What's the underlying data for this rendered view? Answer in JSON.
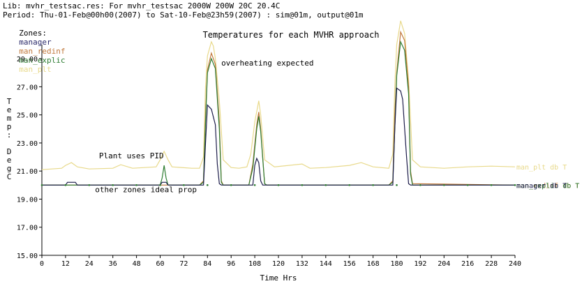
{
  "header": {
    "lib_line": "Lib: mvhr_testsac.res: For mvhr_testsac 2000W 200W 20C 20.4C",
    "period_line": "Period: Thu-01-Feb@00h00(2007) to Sat-10-Feb@23h59(2007) : sim@01m, output@01m",
    "zones_label": "Zones:",
    "zones": [
      {
        "name": "manager",
        "color": "#2a2a6a"
      },
      {
        "name": "man_redinf",
        "color": "#c0783c"
      },
      {
        "name": "man_explic",
        "color": "#2e7d32"
      },
      {
        "name": "man_plt",
        "color": "#e8d98a"
      }
    ]
  },
  "chart_data": {
    "type": "line",
    "title": "Temperatures for each MVHR approach",
    "xlabel": "Time Hrs",
    "ylabel": "Temp: DegC",
    "xlim": [
      0,
      240
    ],
    "ylim": [
      15,
      30
    ],
    "xticks": [
      0,
      12,
      24,
      36,
      48,
      60,
      72,
      84,
      96,
      108,
      120,
      132,
      144,
      156,
      168,
      180,
      192,
      204,
      216,
      228,
      240
    ],
    "yticks": [
      "15.00",
      "17.00",
      "19.00",
      "21.00",
      "23.00",
      "25.00",
      "27.00",
      "29.00"
    ],
    "ytick_values": [
      15,
      17,
      19,
      21,
      23,
      25,
      27,
      29
    ],
    "annotations": [
      {
        "text": "overheating expected",
        "x": 91,
        "y": 28.5
      },
      {
        "text": "Plant uses PID",
        "x": 29,
        "y": 21.9
      },
      {
        "text": "other zones ideal prop",
        "x": 27,
        "y": 19.5
      }
    ],
    "series": [
      {
        "name": "man_plt db T",
        "color": "#e8d98a",
        "points": [
          [
            0,
            21.1
          ],
          [
            10,
            21.2
          ],
          [
            12,
            21.4
          ],
          [
            15,
            21.6
          ],
          [
            18,
            21.3
          ],
          [
            24,
            21.15
          ],
          [
            36,
            21.2
          ],
          [
            40,
            21.45
          ],
          [
            46,
            21.2
          ],
          [
            58,
            21.3
          ],
          [
            60,
            21.8
          ],
          [
            62,
            22.4
          ],
          [
            64,
            21.8
          ],
          [
            66,
            21.3
          ],
          [
            76,
            21.2
          ],
          [
            80,
            21.2
          ],
          [
            82,
            22.0
          ],
          [
            83,
            27.0
          ],
          [
            84,
            29.2
          ],
          [
            86,
            30.2
          ],
          [
            87,
            29.9
          ],
          [
            88,
            29.0
          ],
          [
            90,
            26.0
          ],
          [
            92,
            21.8
          ],
          [
            96,
            21.25
          ],
          [
            100,
            21.2
          ],
          [
            104,
            21.3
          ],
          [
            106,
            22.2
          ],
          [
            108,
            24.5
          ],
          [
            110,
            26.0
          ],
          [
            111,
            25.0
          ],
          [
            113,
            21.8
          ],
          [
            118,
            21.3
          ],
          [
            132,
            21.5
          ],
          [
            136,
            21.2
          ],
          [
            144,
            21.25
          ],
          [
            156,
            21.4
          ],
          [
            162,
            21.6
          ],
          [
            168,
            21.3
          ],
          [
            176,
            21.2
          ],
          [
            178,
            22.2
          ],
          [
            179,
            27.0
          ],
          [
            180,
            30.0
          ],
          [
            182,
            31.7
          ],
          [
            184,
            30.8
          ],
          [
            186,
            27.5
          ],
          [
            188,
            21.8
          ],
          [
            192,
            21.3
          ],
          [
            204,
            21.2
          ],
          [
            216,
            21.3
          ],
          [
            228,
            21.35
          ],
          [
            240,
            21.3
          ]
        ]
      },
      {
        "name": "man_redinf db T",
        "color": "#c0783c",
        "points": [
          [
            0,
            20.0
          ],
          [
            80,
            20.0
          ],
          [
            82,
            20.3
          ],
          [
            83,
            25.0
          ],
          [
            84,
            28.2
          ],
          [
            86,
            29.4
          ],
          [
            88,
            28.6
          ],
          [
            90,
            24.5
          ],
          [
            91,
            20.3
          ],
          [
            92,
            20.0
          ],
          [
            105,
            20.0
          ],
          [
            107,
            21.5
          ],
          [
            109,
            24.3
          ],
          [
            110,
            25.2
          ],
          [
            111,
            24.0
          ],
          [
            113,
            20.1
          ],
          [
            114,
            20.0
          ],
          [
            176,
            20.0
          ],
          [
            178,
            20.3
          ],
          [
            179,
            25.0
          ],
          [
            180,
            28.0
          ],
          [
            182,
            30.9
          ],
          [
            184,
            30.3
          ],
          [
            186,
            27.0
          ],
          [
            187,
            21.0
          ],
          [
            188,
            20.1
          ],
          [
            240,
            20.0
          ]
        ]
      },
      {
        "name": "man_explic db T",
        "color": "#2e7d32",
        "points": [
          [
            0,
            20.0
          ],
          [
            60,
            20.0
          ],
          [
            61,
            20.5
          ],
          [
            62,
            21.4
          ],
          [
            63,
            20.5
          ],
          [
            64,
            20.0
          ],
          [
            80,
            20.0
          ],
          [
            82,
            20.2
          ],
          [
            83,
            24.5
          ],
          [
            84,
            28.0
          ],
          [
            86,
            29.0
          ],
          [
            88,
            28.3
          ],
          [
            90,
            24.0
          ],
          [
            91,
            20.2
          ],
          [
            92,
            20.0
          ],
          [
            105,
            20.0
          ],
          [
            107,
            21.2
          ],
          [
            109,
            24.0
          ],
          [
            110,
            24.9
          ],
          [
            111,
            23.8
          ],
          [
            113,
            20.1
          ],
          [
            114,
            20.0
          ],
          [
            176,
            20.0
          ],
          [
            178,
            20.2
          ],
          [
            179,
            24.0
          ],
          [
            180,
            27.8
          ],
          [
            182,
            30.2
          ],
          [
            184,
            29.6
          ],
          [
            186,
            26.5
          ],
          [
            187,
            20.8
          ],
          [
            188,
            20.0
          ],
          [
            240,
            20.0
          ]
        ]
      },
      {
        "name": "manager db T",
        "color": "#1c1c4a",
        "points": [
          [
            0,
            20.0
          ],
          [
            12,
            20.0
          ],
          [
            13,
            20.2
          ],
          [
            17,
            20.2
          ],
          [
            18,
            20.0
          ],
          [
            60,
            20.0
          ],
          [
            61,
            20.2
          ],
          [
            63,
            20.2
          ],
          [
            64,
            20.0
          ],
          [
            82,
            20.0
          ],
          [
            83,
            23.0
          ],
          [
            84,
            25.7
          ],
          [
            86,
            25.4
          ],
          [
            88,
            24.3
          ],
          [
            89,
            21.5
          ],
          [
            90,
            20.1
          ],
          [
            91,
            20.0
          ],
          [
            107,
            20.0
          ],
          [
            108,
            21.4
          ],
          [
            109,
            21.9
          ],
          [
            110,
            21.6
          ],
          [
            111,
            20.3
          ],
          [
            112,
            20.0
          ],
          [
            178,
            20.0
          ],
          [
            179,
            24.0
          ],
          [
            180,
            26.9
          ],
          [
            182,
            26.7
          ],
          [
            183,
            26.1
          ],
          [
            185,
            22.0
          ],
          [
            186,
            20.1
          ],
          [
            187,
            20.0
          ],
          [
            240,
            20.0
          ]
        ]
      }
    ]
  }
}
